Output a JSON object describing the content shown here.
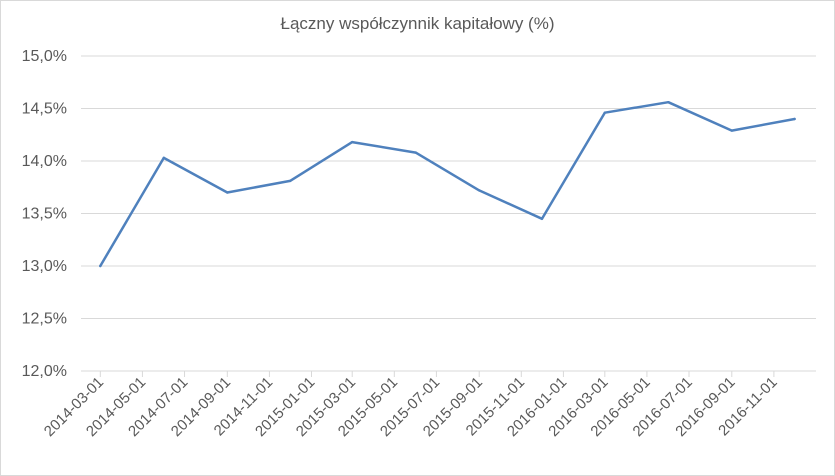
{
  "chart_data": {
    "type": "line",
    "title": "Łączny współczynnik kapitałowy (%)",
    "xlabel": "",
    "ylabel": "",
    "ylim": [
      12.0,
      15.0
    ],
    "y_ticks": [
      "12,0%",
      "12,5%",
      "13,0%",
      "13,5%",
      "14,0%",
      "14,5%",
      "15,0%"
    ],
    "x_tick_labels": [
      "2014-03-01",
      "2014-05-01",
      "2014-07-01",
      "2014-09-01",
      "2014-11-01",
      "2015-01-01",
      "2015-03-01",
      "2015-05-01",
      "2015-07-01",
      "2015-09-01",
      "2015-11-01",
      "2016-01-01",
      "2016-03-01",
      "2016-05-01",
      "2016-07-01",
      "2016-09-01",
      "2016-11-01"
    ],
    "x": [
      "2014-03-01",
      "2014-06-01",
      "2014-09-01",
      "2014-12-01",
      "2015-03-01",
      "2015-06-01",
      "2015-09-01",
      "2015-12-01",
      "2016-03-01",
      "2016-06-01",
      "2016-09-01",
      "2016-12-01"
    ],
    "series": [
      {
        "values": [
          13.0,
          14.03,
          13.7,
          13.81,
          14.18,
          14.08,
          13.72,
          13.45,
          14.46,
          14.56,
          14.29,
          14.4
        ]
      }
    ],
    "grid": true,
    "legend": "none",
    "line_color": "#4f81bd",
    "grid_color": "#d9d9d9"
  }
}
